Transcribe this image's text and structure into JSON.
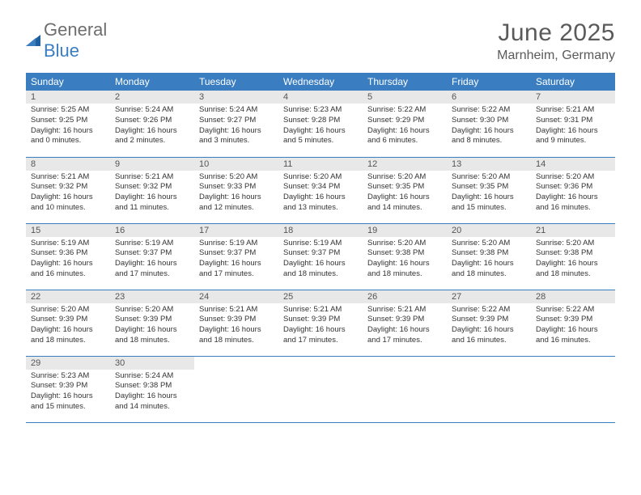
{
  "logo": {
    "word1": "General",
    "word2": "Blue"
  },
  "title": "June 2025",
  "location": "Marnheim, Germany",
  "colors": {
    "header_bg": "#3a7ec1",
    "header_text": "#ffffff",
    "daynum_bg": "#e8e8e8",
    "daynum_text": "#555555",
    "body_text": "#333333",
    "rule": "#3a7ec1",
    "logo_gray": "#6e6e6e",
    "logo_blue": "#3a7ec1",
    "title_color": "#5a5a5a"
  },
  "weekdays": [
    "Sunday",
    "Monday",
    "Tuesday",
    "Wednesday",
    "Thursday",
    "Friday",
    "Saturday"
  ],
  "days": [
    {
      "n": 1,
      "sr": "5:25 AM",
      "ss": "9:25 PM",
      "dl": "16 hours and 0 minutes."
    },
    {
      "n": 2,
      "sr": "5:24 AM",
      "ss": "9:26 PM",
      "dl": "16 hours and 2 minutes."
    },
    {
      "n": 3,
      "sr": "5:24 AM",
      "ss": "9:27 PM",
      "dl": "16 hours and 3 minutes."
    },
    {
      "n": 4,
      "sr": "5:23 AM",
      "ss": "9:28 PM",
      "dl": "16 hours and 5 minutes."
    },
    {
      "n": 5,
      "sr": "5:22 AM",
      "ss": "9:29 PM",
      "dl": "16 hours and 6 minutes."
    },
    {
      "n": 6,
      "sr": "5:22 AM",
      "ss": "9:30 PM",
      "dl": "16 hours and 8 minutes."
    },
    {
      "n": 7,
      "sr": "5:21 AM",
      "ss": "9:31 PM",
      "dl": "16 hours and 9 minutes."
    },
    {
      "n": 8,
      "sr": "5:21 AM",
      "ss": "9:32 PM",
      "dl": "16 hours and 10 minutes."
    },
    {
      "n": 9,
      "sr": "5:21 AM",
      "ss": "9:32 PM",
      "dl": "16 hours and 11 minutes."
    },
    {
      "n": 10,
      "sr": "5:20 AM",
      "ss": "9:33 PM",
      "dl": "16 hours and 12 minutes."
    },
    {
      "n": 11,
      "sr": "5:20 AM",
      "ss": "9:34 PM",
      "dl": "16 hours and 13 minutes."
    },
    {
      "n": 12,
      "sr": "5:20 AM",
      "ss": "9:35 PM",
      "dl": "16 hours and 14 minutes."
    },
    {
      "n": 13,
      "sr": "5:20 AM",
      "ss": "9:35 PM",
      "dl": "16 hours and 15 minutes."
    },
    {
      "n": 14,
      "sr": "5:20 AM",
      "ss": "9:36 PM",
      "dl": "16 hours and 16 minutes."
    },
    {
      "n": 15,
      "sr": "5:19 AM",
      "ss": "9:36 PM",
      "dl": "16 hours and 16 minutes."
    },
    {
      "n": 16,
      "sr": "5:19 AM",
      "ss": "9:37 PM",
      "dl": "16 hours and 17 minutes."
    },
    {
      "n": 17,
      "sr": "5:19 AM",
      "ss": "9:37 PM",
      "dl": "16 hours and 17 minutes."
    },
    {
      "n": 18,
      "sr": "5:19 AM",
      "ss": "9:37 PM",
      "dl": "16 hours and 18 minutes."
    },
    {
      "n": 19,
      "sr": "5:20 AM",
      "ss": "9:38 PM",
      "dl": "16 hours and 18 minutes."
    },
    {
      "n": 20,
      "sr": "5:20 AM",
      "ss": "9:38 PM",
      "dl": "16 hours and 18 minutes."
    },
    {
      "n": 21,
      "sr": "5:20 AM",
      "ss": "9:38 PM",
      "dl": "16 hours and 18 minutes."
    },
    {
      "n": 22,
      "sr": "5:20 AM",
      "ss": "9:39 PM",
      "dl": "16 hours and 18 minutes."
    },
    {
      "n": 23,
      "sr": "5:20 AM",
      "ss": "9:39 PM",
      "dl": "16 hours and 18 minutes."
    },
    {
      "n": 24,
      "sr": "5:21 AM",
      "ss": "9:39 PM",
      "dl": "16 hours and 18 minutes."
    },
    {
      "n": 25,
      "sr": "5:21 AM",
      "ss": "9:39 PM",
      "dl": "16 hours and 17 minutes."
    },
    {
      "n": 26,
      "sr": "5:21 AM",
      "ss": "9:39 PM",
      "dl": "16 hours and 17 minutes."
    },
    {
      "n": 27,
      "sr": "5:22 AM",
      "ss": "9:39 PM",
      "dl": "16 hours and 16 minutes."
    },
    {
      "n": 28,
      "sr": "5:22 AM",
      "ss": "9:39 PM",
      "dl": "16 hours and 16 minutes."
    },
    {
      "n": 29,
      "sr": "5:23 AM",
      "ss": "9:39 PM",
      "dl": "16 hours and 15 minutes."
    },
    {
      "n": 30,
      "sr": "5:24 AM",
      "ss": "9:38 PM",
      "dl": "16 hours and 14 minutes."
    }
  ],
  "labels": {
    "sunrise": "Sunrise:",
    "sunset": "Sunset:",
    "daylight": "Daylight:"
  },
  "layout": {
    "first_weekday_index": 0,
    "rows": 5,
    "cols": 7
  }
}
